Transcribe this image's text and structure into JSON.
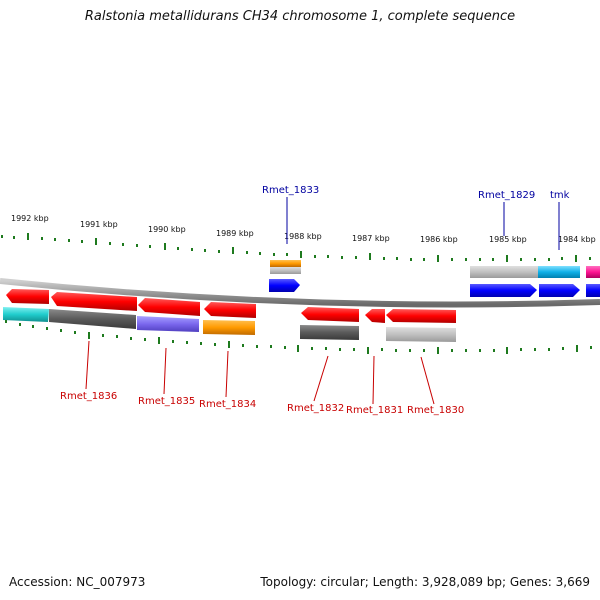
{
  "title": "Ralstonia metallidurans CH34 chromosome 1, complete sequence",
  "footer": {
    "accession": "Accession: NC_007973",
    "summary": "Topology: circular; Length: 3,928,089 bp; Genes: 3,669"
  },
  "kbp_labels": [
    "1992 kbp",
    "1991 kbp",
    "1990 kbp",
    "1989 kbp",
    "1988 kbp",
    "1987 kbp",
    "1986 kbp",
    "1985 kbp",
    "1984 kbp"
  ],
  "gene_labels": {
    "top": [
      "Rmet_1833",
      "Rmet_1829",
      "tmk"
    ],
    "bottom": [
      "Rmet_1836",
      "Rmet_1835",
      "Rmet_1834",
      "Rmet_1832",
      "Rmet_1831",
      "Rmet_1830"
    ]
  },
  "colors": {
    "reverse_cds": "#ff0000",
    "forward_cds": "#0000ff",
    "backbone": "#888888",
    "tick": "#1e7a1e",
    "label_red": "#c80000",
    "label_blue": "#0000a0"
  }
}
